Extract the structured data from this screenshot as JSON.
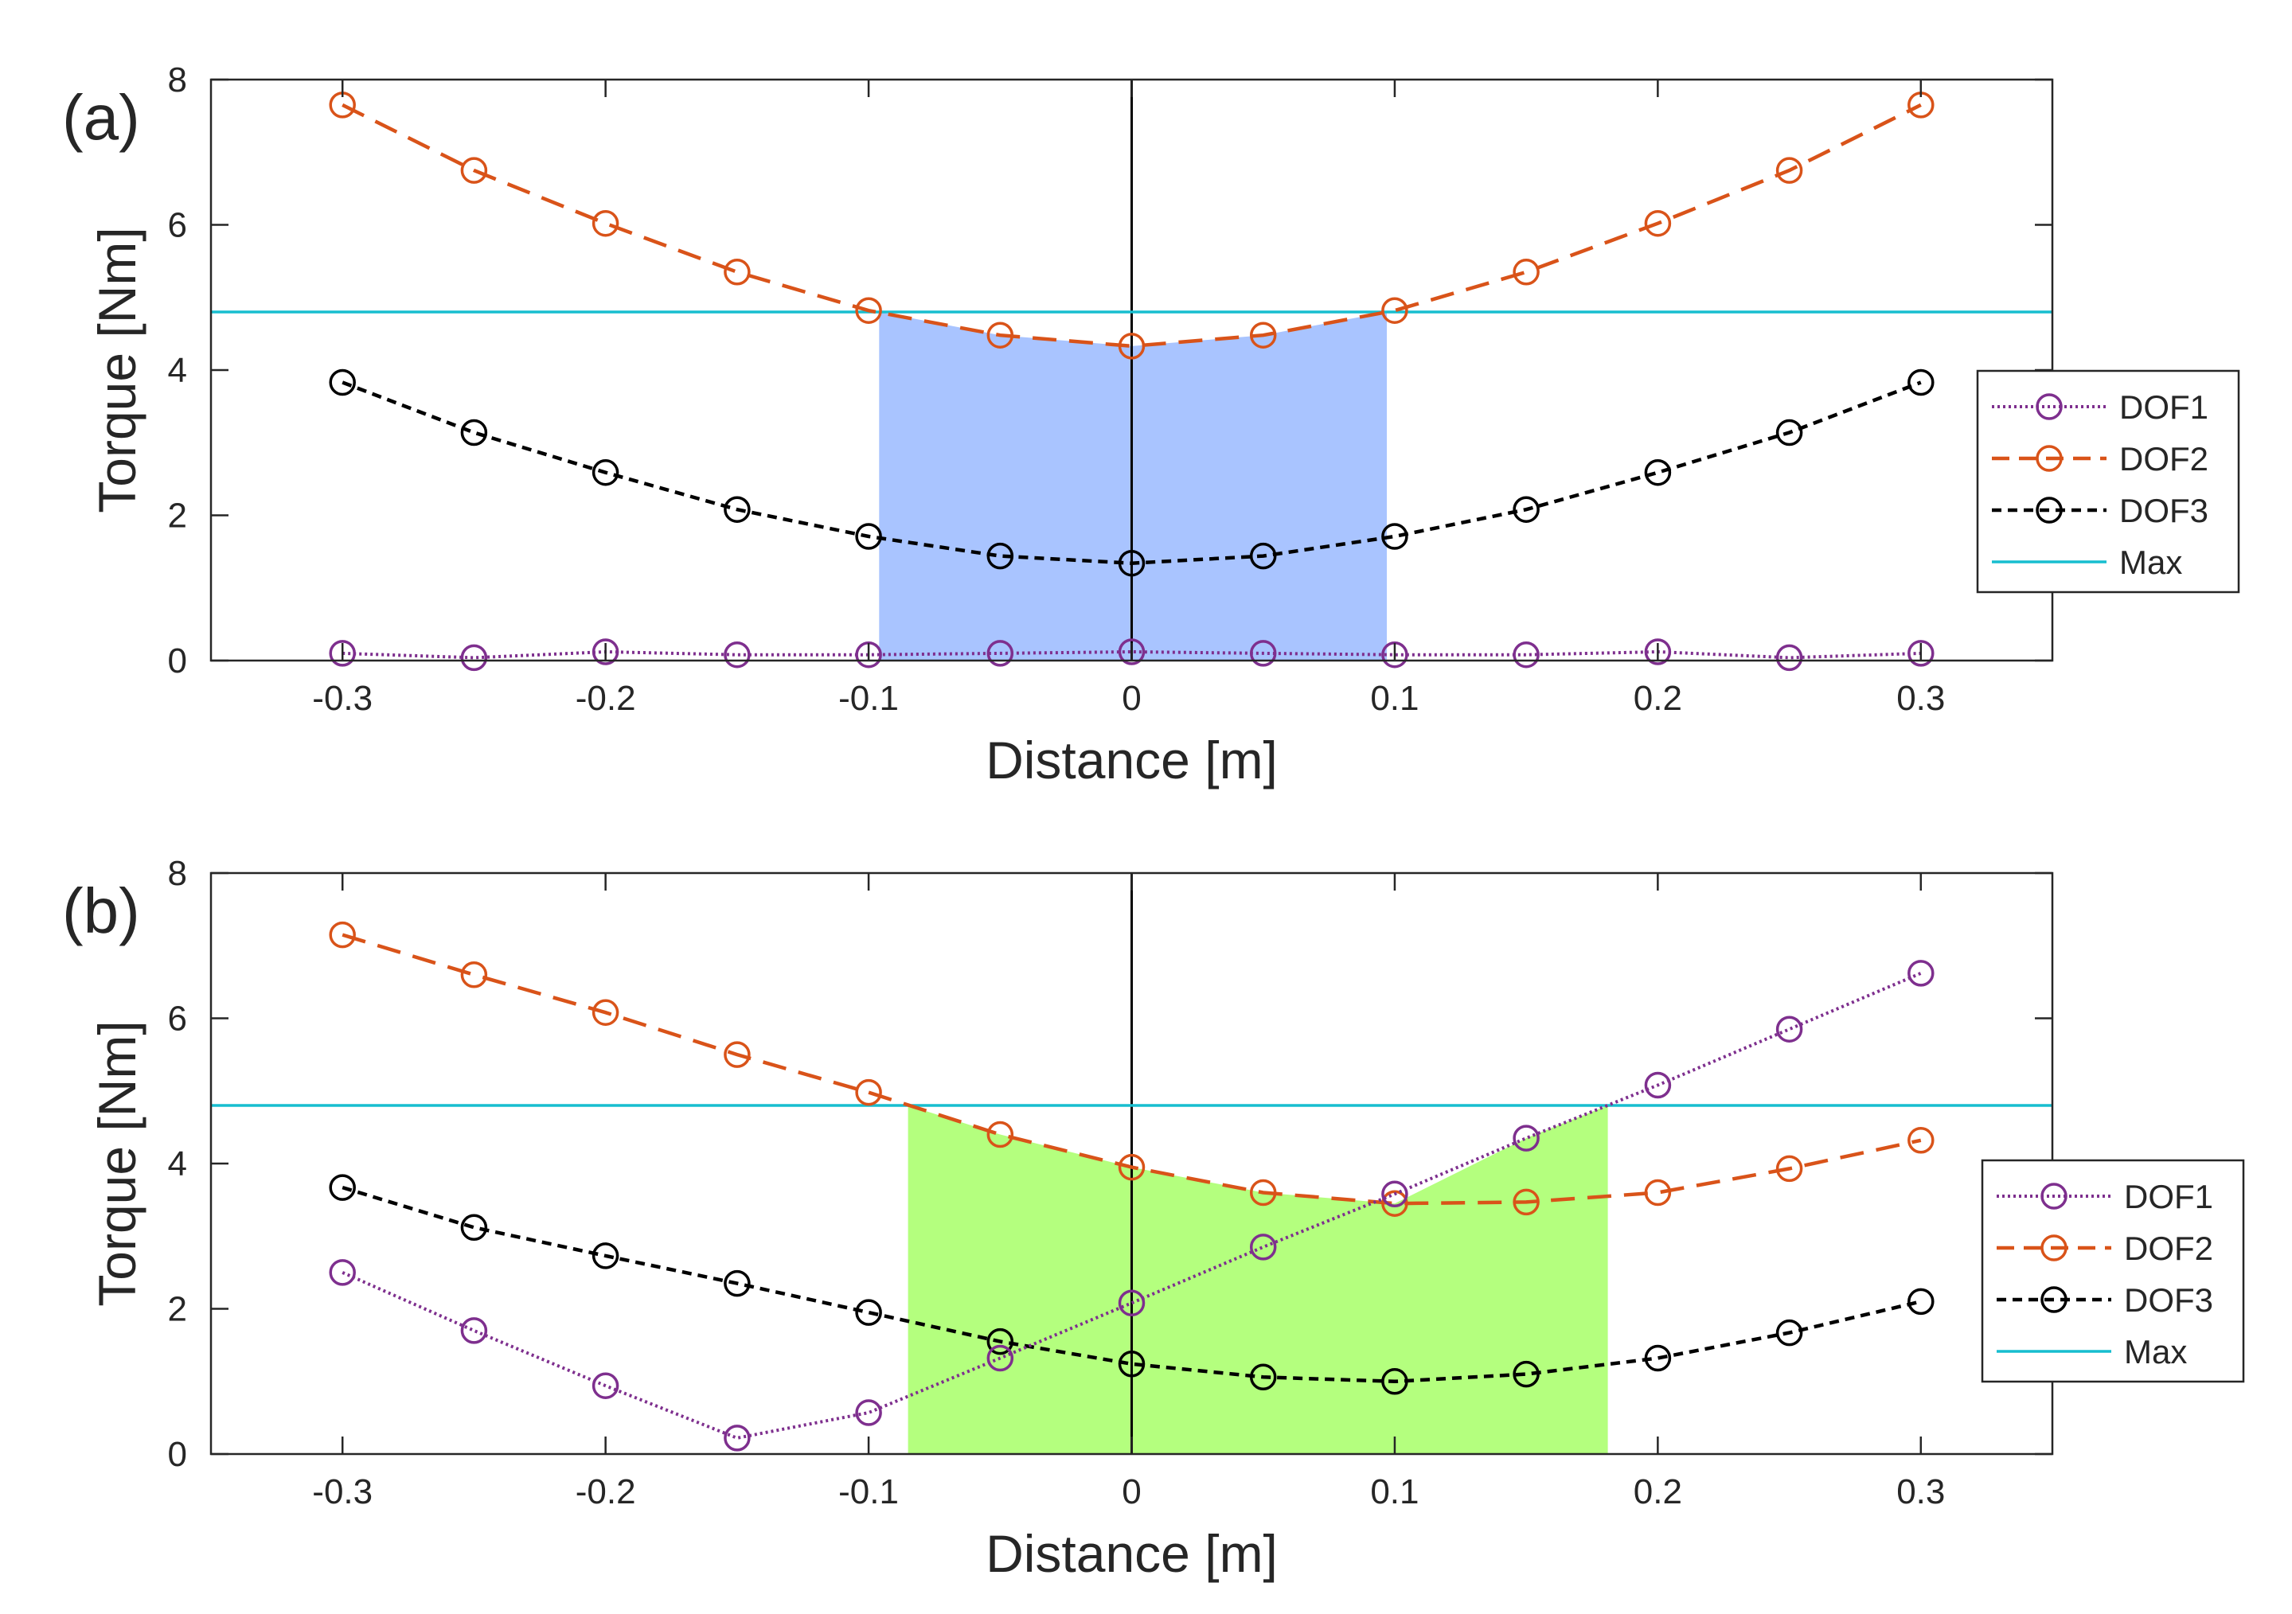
{
  "chart_data": [
    {
      "type": "line",
      "panel_label": "(a)",
      "xlabel": "Distance [m]",
      "ylabel": "Torque [Nm]",
      "xlim": [
        -0.35,
        0.35
      ],
      "ylim": [
        0,
        8
      ],
      "xticks": [
        -0.3,
        -0.2,
        -0.1,
        0,
        0.1,
        0.2,
        0.3
      ],
      "xtick_labels": [
        "-0.3",
        "-0.2",
        "-0.1",
        "0",
        "0.1",
        "0.2",
        "0.3"
      ],
      "yticks": [
        0,
        2,
        4,
        6,
        8
      ],
      "ytick_labels": [
        "0",
        "2",
        "4",
        "6",
        "8"
      ],
      "grid": false,
      "legend_position": "right",
      "x": [
        -0.3,
        -0.25,
        -0.2,
        -0.15,
        -0.1,
        -0.05,
        0,
        0.05,
        0.1,
        0.15,
        0.2,
        0.25,
        0.3
      ],
      "series": [
        {
          "name": "DOF1",
          "color": "#7e2f8e",
          "style": "dotted",
          "values": [
            0.1,
            0.04,
            0.12,
            0.08,
            0.08,
            0.1,
            0.12,
            0.1,
            0.08,
            0.08,
            0.12,
            0.04,
            0.1
          ]
        },
        {
          "name": "DOF2",
          "color": "#d95319",
          "style": "dashed",
          "values": [
            7.65,
            6.75,
            6.02,
            5.35,
            4.82,
            4.48,
            4.33,
            4.48,
            4.82,
            5.35,
            6.02,
            6.75,
            7.65
          ]
        },
        {
          "name": "DOF3",
          "color": "#000000",
          "style": "short-dashed",
          "values": [
            3.83,
            3.14,
            2.59,
            2.08,
            1.71,
            1.44,
            1.34,
            1.44,
            1.71,
            2.08,
            2.59,
            3.14,
            3.83
          ]
        }
      ],
      "max_line": {
        "name": "Max",
        "color": "#17becf",
        "value": 4.8
      },
      "shaded_region": {
        "color": "#a9c4ff",
        "x": [
          -0.096,
          -0.05,
          0,
          0.05,
          0.097
        ],
        "top": [
          4.8,
          4.48,
          4.33,
          4.48,
          4.8
        ],
        "bottom": 0
      }
    },
    {
      "type": "line",
      "panel_label": "(b)",
      "xlabel": "Distance [m]",
      "ylabel": "Torque [Nm]",
      "xlim": [
        -0.35,
        0.35
      ],
      "ylim": [
        0,
        8
      ],
      "xticks": [
        -0.3,
        -0.2,
        -0.1,
        0,
        0.1,
        0.2,
        0.3
      ],
      "xtick_labels": [
        "-0.3",
        "-0.2",
        "-0.1",
        "0",
        "0.1",
        "0.2",
        "0.3"
      ],
      "yticks": [
        0,
        2,
        4,
        6,
        8
      ],
      "ytick_labels": [
        "0",
        "2",
        "4",
        "6",
        "8"
      ],
      "grid": false,
      "legend_position": "right",
      "x": [
        -0.3,
        -0.25,
        -0.2,
        -0.15,
        -0.1,
        -0.05,
        0,
        0.05,
        0.1,
        0.15,
        0.2,
        0.25,
        0.3
      ],
      "series": [
        {
          "name": "DOF1",
          "color": "#7e2f8e",
          "style": "dotted",
          "values": [
            2.5,
            1.7,
            0.94,
            0.22,
            0.57,
            1.32,
            2.08,
            2.85,
            3.58,
            4.35,
            5.08,
            5.85,
            6.62
          ]
        },
        {
          "name": "DOF2",
          "color": "#d95319",
          "style": "dashed",
          "values": [
            7.15,
            6.6,
            6.08,
            5.5,
            4.98,
            4.4,
            3.95,
            3.6,
            3.45,
            3.47,
            3.6,
            3.93,
            4.32
          ]
        },
        {
          "name": "DOF3",
          "color": "#000000",
          "style": "short-dashed",
          "values": [
            3.67,
            3.12,
            2.73,
            2.35,
            1.95,
            1.55,
            1.24,
            1.06,
            1.0,
            1.1,
            1.32,
            1.67,
            2.1
          ]
        }
      ],
      "max_line": {
        "name": "Max",
        "color": "#17becf",
        "value": 4.8
      },
      "shaded_region": {
        "color": "#b4ff7e",
        "x": [
          -0.085,
          -0.05,
          0,
          0.05,
          0.1,
          0.15,
          0.181
        ],
        "top": [
          4.8,
          4.4,
          3.95,
          3.6,
          3.45,
          4.35,
          4.8
        ],
        "bottom": 0
      }
    }
  ]
}
